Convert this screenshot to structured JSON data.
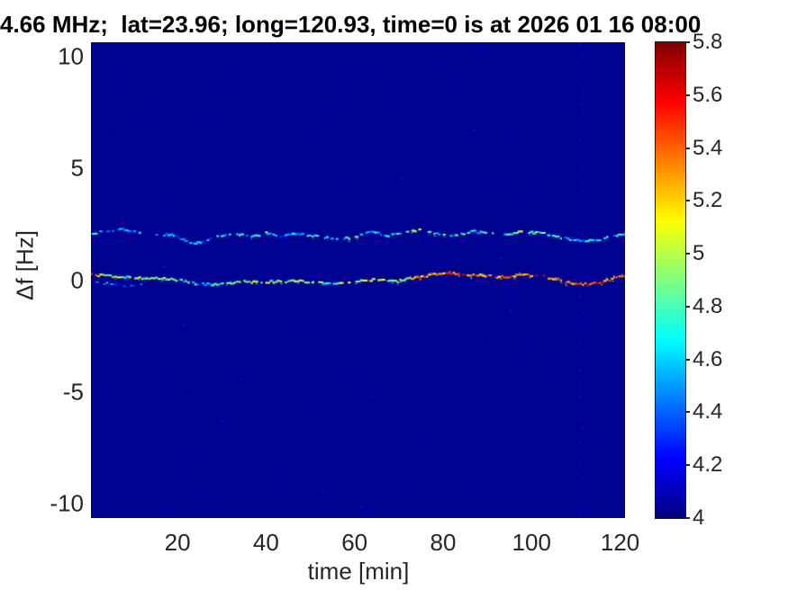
{
  "chart_data": {
    "type": "heatmap",
    "subtype": "doppler-spectrogram",
    "title": "4.66 MHz;  lat=23.96; long=120.93, time=0 is at 2026 01 16 08:00",
    "xlabel": "time [min]",
    "ylabel": "Δf [Hz]",
    "x_range": [
      0.45,
      121.1
    ],
    "y_range": [
      -10.66,
      10.66
    ],
    "x_ticks": [
      20,
      40,
      60,
      80,
      100,
      120
    ],
    "y_ticks": [
      10,
      5,
      0,
      -5,
      -10
    ],
    "grid": false,
    "background_value": 4.03,
    "colorbar": {
      "position": "right",
      "range": [
        4,
        5.8
      ],
      "ticks": [
        4,
        4.2,
        4.4,
        4.6,
        4.8,
        5,
        5.2,
        5.4,
        5.6,
        5.8
      ],
      "colormap": "jet"
    },
    "series": [
      {
        "name": "upper-doppler-trace",
        "points_format": [
          "time_min",
          "freq_hz",
          "intensity"
        ],
        "points": [
          [
            0.5,
            2.03,
            4.7
          ],
          [
            4.3,
            2.23,
            4.6
          ],
          [
            7.8,
            2.31,
            4.5
          ],
          [
            11.5,
            2.11,
            4.6
          ],
          [
            15.1,
            2.07,
            4.7
          ],
          [
            19.2,
            1.99,
            4.5
          ],
          [
            23.6,
            1.63,
            4.4
          ],
          [
            26.7,
            1.79,
            4.5
          ],
          [
            29.3,
            1.99,
            4.6
          ],
          [
            32.8,
            2.07,
            4.8
          ],
          [
            36.9,
            1.95,
            4.6
          ],
          [
            40.3,
            2.11,
            4.7
          ],
          [
            43.6,
            1.99,
            4.5
          ],
          [
            47.7,
            2.07,
            4.6
          ],
          [
            51.7,
            1.95,
            4.7
          ],
          [
            55.8,
            1.83,
            4.6
          ],
          [
            59.9,
            1.91,
            4.8
          ],
          [
            63.9,
            2.19,
            4.6
          ],
          [
            67.4,
            1.99,
            4.7
          ],
          [
            70.8,
            2.11,
            4.6
          ],
          [
            74.9,
            2.23,
            5.0
          ],
          [
            79.0,
            2.07,
            4.7
          ],
          [
            83.0,
            1.99,
            4.6
          ],
          [
            86.3,
            2.19,
            4.8
          ],
          [
            90.4,
            2.11,
            4.6
          ],
          [
            94.4,
            2.03,
            4.7
          ],
          [
            97.9,
            2.19,
            5.0
          ],
          [
            101.9,
            2.11,
            4.8
          ],
          [
            105.4,
            1.95,
            4.6
          ],
          [
            108.7,
            1.83,
            4.5
          ],
          [
            112.1,
            1.75,
            4.6
          ],
          [
            115.6,
            1.83,
            4.7
          ],
          [
            118.8,
            1.99,
            4.6
          ],
          [
            121.1,
            2.11,
            4.7
          ]
        ]
      },
      {
        "name": "lower-doppler-trace",
        "points_format": [
          "time_min",
          "freq_hz",
          "intensity"
        ],
        "points": [
          [
            0.5,
            0.24,
            5.3
          ],
          [
            4.3,
            0.2,
            4.9
          ],
          [
            8.4,
            0.12,
            4.8
          ],
          [
            13.9,
            0.08,
            5.0
          ],
          [
            19.2,
            0.04,
            4.9
          ],
          [
            24.1,
            -0.16,
            4.6
          ],
          [
            28.7,
            -0.2,
            4.7
          ],
          [
            33.8,
            -0.08,
            5.0
          ],
          [
            40.9,
            -0.08,
            4.9
          ],
          [
            47.7,
            -0.04,
            5.0
          ],
          [
            54.6,
            -0.16,
            4.8
          ],
          [
            59.9,
            -0.08,
            5.0
          ],
          [
            65.3,
            0.04,
            5.1
          ],
          [
            69.4,
            -0.08,
            4.9
          ],
          [
            73.5,
            0.12,
            5.2
          ],
          [
            77.6,
            0.24,
            5.4
          ],
          [
            81.6,
            0.32,
            5.3
          ],
          [
            85.7,
            0.24,
            5.4
          ],
          [
            89.7,
            0.2,
            5.3
          ],
          [
            93.8,
            0.12,
            5.4
          ],
          [
            97.9,
            0.24,
            5.3
          ],
          [
            101.9,
            0.2,
            5.5
          ],
          [
            106.0,
            0.0,
            5.3
          ],
          [
            110.1,
            -0.2,
            5.4
          ],
          [
            114.2,
            -0.16,
            5.5
          ],
          [
            118.2,
            0.04,
            5.3
          ],
          [
            121.1,
            0.2,
            5.4
          ]
        ]
      },
      {
        "name": "lower-trace-ghost-branch",
        "points_format": [
          "time_min",
          "freq_hz",
          "intensity"
        ],
        "points": [
          [
            0.8,
            -0.05,
            4.5
          ],
          [
            3.0,
            -0.12,
            4.45
          ],
          [
            6.0,
            -0.2,
            4.4
          ],
          [
            9.0,
            -0.25,
            4.45
          ],
          [
            12.0,
            -0.18,
            4.4
          ]
        ]
      }
    ],
    "artifacts": [
      {
        "name": "vertical-interference-line",
        "time_min": 111.1,
        "value_range": [
          4.08,
          4.3
        ]
      }
    ],
    "noise_speckle_value_range": [
      4.03,
      4.35
    ]
  }
}
